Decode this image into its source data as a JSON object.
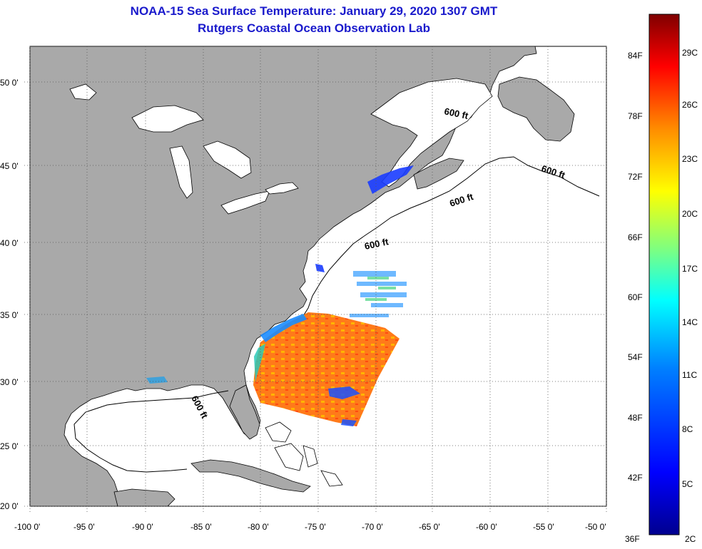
{
  "title": {
    "line1": "NOAA-15 Sea Surface Temperature:  January 29, 2020 1307 GMT",
    "line2": "Rutgers Coastal Ocean Observation Lab"
  },
  "map": {
    "lon_labels": [
      "-100 0'",
      "-95 0'",
      "-90 0'",
      "-85 0'",
      "-80 0'",
      "-75 0'",
      "-70 0'",
      "-65 0'",
      "-60 0'",
      "-55 0'",
      "-50 0'"
    ],
    "lat_labels": [
      "50 0'",
      "45 0'",
      "40 0'",
      "35 0'",
      "30 0'",
      "25 0'",
      "20 0'"
    ],
    "isobath_labels": [
      "600 ft",
      "600 ft",
      "600 ft",
      "600 ft",
      "600 ft"
    ],
    "colors": {
      "land": "#a9a9a9",
      "ocean": "#ffffff",
      "coast": "#000000"
    }
  },
  "colorbar": {
    "fahrenheit_labels": [
      "84F",
      "78F",
      "72F",
      "66F",
      "60F",
      "54F",
      "48F",
      "42F",
      "36F"
    ],
    "celsius_labels": [
      "29C",
      "26C",
      "23C",
      "20C",
      "17C",
      "14C",
      "11C",
      "8C",
      "5C",
      "2C"
    ],
    "colors": [
      "#7f0000",
      "#ff0000",
      "#ff8c00",
      "#ffff00",
      "#7fff7f",
      "#00ffff",
      "#0080ff",
      "#0000ff",
      "#00008f"
    ]
  }
}
